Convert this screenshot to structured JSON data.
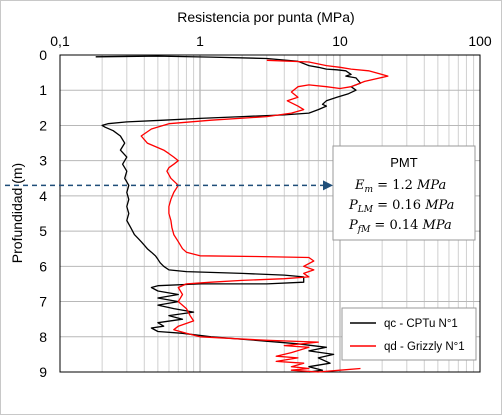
{
  "chart_data": {
    "type": "line",
    "title": "",
    "xlabel": "Resistencia por punta  (MPa)",
    "ylabel": "Profundidad  (m)",
    "xscale": "log",
    "xlim": [
      0.1,
      100
    ],
    "ylim": [
      9,
      0
    ],
    "x_axis_position": "top",
    "y_axis_inverted": true,
    "grid": true,
    "x_ticks": [
      "0,1",
      "1",
      "10",
      "100"
    ],
    "y_ticks": [
      "0",
      "1",
      "2",
      "3",
      "4",
      "5",
      "6",
      "7",
      "8",
      "9"
    ],
    "legend_position": "bottom-right",
    "series": [
      {
        "name": "qc - CPTu N°1",
        "color": "#000000",
        "points": [
          [
            0.18,
            0.05
          ],
          [
            0.5,
            0.03
          ],
          [
            1.2,
            0.06
          ],
          [
            3.0,
            0.1
          ],
          [
            5.0,
            0.18
          ],
          [
            6.0,
            0.3
          ],
          [
            7.0,
            0.35
          ],
          [
            8.0,
            0.4
          ],
          [
            9.5,
            0.42
          ],
          [
            11.0,
            0.45
          ],
          [
            12.0,
            0.55
          ],
          [
            11.0,
            0.6
          ],
          [
            13.0,
            0.65
          ],
          [
            14.0,
            0.8
          ],
          [
            12.0,
            0.9
          ],
          [
            13.0,
            1.0
          ],
          [
            11.5,
            1.1
          ],
          [
            9.5,
            1.2
          ],
          [
            8.0,
            1.3
          ],
          [
            7.5,
            1.4
          ],
          [
            8.0,
            1.45
          ],
          [
            7.0,
            1.55
          ],
          [
            6.0,
            1.65
          ],
          [
            4.0,
            1.7
          ],
          [
            2.0,
            1.75
          ],
          [
            1.0,
            1.8
          ],
          [
            0.55,
            1.85
          ],
          [
            0.3,
            1.9
          ],
          [
            0.22,
            1.95
          ],
          [
            0.2,
            2.0
          ],
          [
            0.21,
            2.05
          ],
          [
            0.24,
            2.15
          ],
          [
            0.27,
            2.3
          ],
          [
            0.29,
            2.5
          ],
          [
            0.27,
            2.7
          ],
          [
            0.3,
            2.9
          ],
          [
            0.28,
            3.1
          ],
          [
            0.3,
            3.3
          ],
          [
            0.29,
            3.5
          ],
          [
            0.31,
            3.7
          ],
          [
            0.3,
            3.9
          ],
          [
            0.31,
            4.1
          ],
          [
            0.3,
            4.3
          ],
          [
            0.31,
            4.5
          ],
          [
            0.3,
            4.7
          ],
          [
            0.32,
            4.9
          ],
          [
            0.34,
            5.1
          ],
          [
            0.36,
            5.2
          ],
          [
            0.38,
            5.3
          ],
          [
            0.4,
            5.4
          ],
          [
            0.42,
            5.5
          ],
          [
            0.45,
            5.6
          ],
          [
            0.48,
            5.7
          ],
          [
            0.5,
            5.8
          ],
          [
            0.52,
            5.9
          ],
          [
            0.55,
            6.0
          ],
          [
            0.6,
            6.1
          ],
          [
            0.8,
            6.15
          ],
          [
            2.0,
            6.2
          ],
          [
            4.0,
            6.25
          ],
          [
            5.5,
            6.3
          ],
          [
            5.5,
            6.45
          ],
          [
            3.0,
            6.5
          ],
          [
            1.0,
            6.5
          ],
          [
            0.5,
            6.55
          ],
          [
            0.45,
            6.6
          ],
          [
            0.5,
            6.7
          ],
          [
            0.7,
            6.8
          ],
          [
            0.5,
            6.9
          ],
          [
            0.7,
            7.0
          ],
          [
            0.5,
            7.1
          ],
          [
            0.65,
            7.2
          ],
          [
            0.9,
            7.3
          ],
          [
            0.6,
            7.4
          ],
          [
            0.75,
            7.5
          ],
          [
            0.5,
            7.6
          ],
          [
            0.55,
            7.7
          ],
          [
            0.45,
            7.75
          ],
          [
            0.5,
            7.85
          ],
          [
            0.75,
            7.9
          ],
          [
            1.2,
            8.0
          ],
          [
            2.5,
            8.1
          ],
          [
            5.0,
            8.2
          ],
          [
            8.0,
            8.3
          ],
          [
            6.0,
            8.4
          ],
          [
            9.0,
            8.5
          ],
          [
            7.0,
            8.6
          ],
          [
            8.5,
            8.75
          ],
          [
            6.0,
            8.85
          ],
          [
            7.5,
            8.95
          ],
          [
            6.0,
            9.0
          ]
        ]
      },
      {
        "name": "qd - Grizzly N°1",
        "color": "#ff0000",
        "points": [
          [
            3.0,
            0.15
          ],
          [
            6.0,
            0.2
          ],
          [
            8.0,
            0.3
          ],
          [
            10.0,
            0.35
          ],
          [
            12.0,
            0.4
          ],
          [
            16.0,
            0.45
          ],
          [
            22.0,
            0.6
          ],
          [
            15.0,
            0.75
          ],
          [
            12.0,
            0.9
          ],
          [
            10.0,
            0.95
          ],
          [
            8.0,
            0.9
          ],
          [
            6.0,
            0.85
          ],
          [
            5.0,
            0.9
          ],
          [
            4.5,
            1.05
          ],
          [
            5.0,
            1.2
          ],
          [
            4.2,
            1.3
          ],
          [
            5.0,
            1.45
          ],
          [
            5.5,
            1.55
          ],
          [
            4.5,
            1.65
          ],
          [
            3.0,
            1.75
          ],
          [
            1.2,
            1.85
          ],
          [
            0.6,
            1.95
          ],
          [
            0.45,
            2.1
          ],
          [
            0.38,
            2.3
          ],
          [
            0.42,
            2.5
          ],
          [
            0.55,
            2.7
          ],
          [
            0.6,
            2.8
          ],
          [
            0.65,
            2.9
          ],
          [
            0.7,
            3.0
          ],
          [
            0.65,
            3.1
          ],
          [
            0.6,
            3.2
          ],
          [
            0.58,
            3.3
          ],
          [
            0.62,
            3.5
          ],
          [
            0.7,
            3.7
          ],
          [
            0.65,
            3.9
          ],
          [
            0.62,
            4.1
          ],
          [
            0.6,
            4.3
          ],
          [
            0.6,
            4.5
          ],
          [
            0.62,
            4.7
          ],
          [
            0.63,
            4.9
          ],
          [
            0.65,
            5.1
          ],
          [
            0.7,
            5.3
          ],
          [
            0.75,
            5.5
          ],
          [
            0.8,
            5.6
          ],
          [
            1.0,
            5.7
          ],
          [
            2.5,
            5.72
          ],
          [
            6.0,
            5.75
          ],
          [
            6.5,
            5.85
          ],
          [
            5.5,
            6.0
          ],
          [
            6.5,
            6.1
          ],
          [
            5.5,
            6.2
          ],
          [
            6.0,
            6.3
          ],
          [
            4.0,
            6.35
          ],
          [
            2.0,
            6.4
          ],
          [
            1.2,
            6.45
          ],
          [
            0.8,
            6.5
          ],
          [
            0.7,
            6.6
          ],
          [
            0.75,
            6.8
          ],
          [
            0.7,
            7.0
          ],
          [
            0.8,
            7.2
          ],
          [
            0.85,
            7.4
          ],
          [
            0.9,
            7.55
          ],
          [
            0.7,
            7.7
          ],
          [
            0.65,
            7.8
          ],
          [
            0.8,
            7.9
          ],
          [
            1.0,
            8.0
          ],
          [
            3.0,
            8.1
          ],
          [
            7.0,
            8.15
          ],
          [
            4.0,
            8.25
          ],
          [
            6.0,
            8.3
          ],
          [
            4.5,
            8.45
          ],
          [
            3.5,
            8.55
          ],
          [
            5.0,
            8.6
          ],
          [
            3.5,
            8.7
          ],
          [
            5.5,
            8.75
          ],
          [
            4.5,
            8.85
          ],
          [
            6.0,
            8.9
          ],
          [
            4.5,
            8.95
          ],
          [
            7.0,
            9.0
          ],
          [
            10.0,
            8.95
          ],
          [
            14.0,
            8.9
          ]
        ]
      }
    ],
    "annotation": {
      "title": "PMT",
      "lines": [
        "E_m = 1.2 MPa",
        "P_LM = 0.16 MPa",
        "P_fM = 0.14 MPa"
      ],
      "arrow_depth": 3.7,
      "arrow_color": "#1f4e79"
    }
  }
}
